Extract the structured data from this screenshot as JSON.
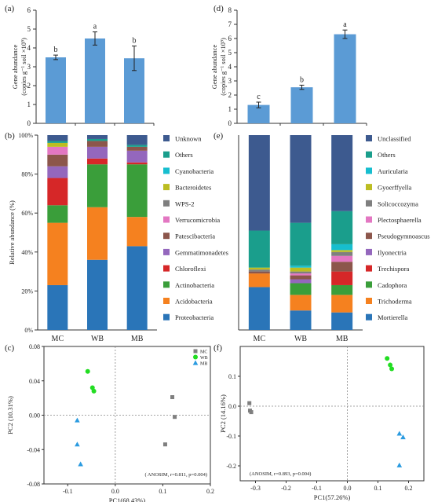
{
  "chart_data": [
    {
      "panel": "(a)",
      "type": "bar",
      "categories": [
        "MC",
        "WB",
        "MB"
      ],
      "values": [
        3.5,
        4.5,
        3.45
      ],
      "errors": [
        0.12,
        0.35,
        0.65
      ],
      "letters": [
        "b",
        "a",
        "b"
      ],
      "ylabel_lines": [
        "Gene abundance",
        "(copies g⁻¹ soil ×10⁹)"
      ],
      "ylim": [
        0,
        6
      ],
      "yticks": [
        "0",
        "1",
        "2",
        "3",
        "4",
        "5",
        "6"
      ],
      "color": "#5b9bd5"
    },
    {
      "panel": "(d)",
      "type": "bar",
      "categories": [
        "MC",
        "WB",
        "MB"
      ],
      "values": [
        1.3,
        2.55,
        6.3
      ],
      "errors": [
        0.2,
        0.15,
        0.3
      ],
      "letters": [
        "c",
        "b",
        "a"
      ],
      "ylabel_lines": [
        "Gene abundance",
        "(copies g⁻¹ soil ×10⁹)"
      ],
      "ylim": [
        0,
        8
      ],
      "yticks": [
        "0",
        "1",
        "2",
        "3",
        "4",
        "5",
        "6",
        "7",
        "8"
      ],
      "color": "#5b9bd5"
    },
    {
      "panel": "(b)",
      "type": "bar",
      "stacked": true,
      "categories": [
        "MC",
        "WB",
        "MB"
      ],
      "ylabel": "Relative abundance (%)",
      "yticks": [
        "0%",
        "20%",
        "40%",
        "60%",
        "80%",
        "100%"
      ],
      "series": [
        {
          "name": "Proteobacteria",
          "color": "#2a75b8",
          "values": [
            23,
            36,
            43
          ]
        },
        {
          "name": "Acidobacteria",
          "color": "#f5811f",
          "values": [
            32,
            27,
            15
          ]
        },
        {
          "name": "Actinobacteria",
          "color": "#3a9e3a",
          "values": [
            9,
            22,
            27
          ]
        },
        {
          "name": "Chloroflexi",
          "color": "#d62728",
          "values": [
            14,
            3,
            1
          ]
        },
        {
          "name": "Gemmatimonadetes",
          "color": "#9467bd",
          "values": [
            6,
            6,
            6
          ]
        },
        {
          "name": "Patescibacteria",
          "color": "#8c564b",
          "values": [
            6,
            3,
            2
          ]
        },
        {
          "name": "Verrucomicrobia",
          "color": "#e377c2",
          "values": [
            4,
            0,
            0
          ]
        },
        {
          "name": "WPS-2",
          "color": "#7f7f7f",
          "values": [
            0,
            0,
            0
          ]
        },
        {
          "name": "Bacteroidetes",
          "color": "#bcbd22",
          "values": [
            2,
            0,
            0
          ]
        },
        {
          "name": "Cyanobacteria",
          "color": "#17becf",
          "values": [
            0,
            0,
            0
          ]
        },
        {
          "name": "Others",
          "color": "#1a9e8c",
          "values": [
            1,
            1,
            1
          ]
        },
        {
          "name": "Unknown",
          "color": "#3d5a8f",
          "values": [
            3,
            2,
            5
          ]
        }
      ]
    },
    {
      "panel": "(e)",
      "type": "bar",
      "stacked": true,
      "categories": [
        "MC",
        "WB",
        "MB"
      ],
      "series": [
        {
          "name": "Mortierella",
          "color": "#2a75b8",
          "values": [
            22,
            10,
            9
          ]
        },
        {
          "name": "Trichoderma",
          "color": "#f5811f",
          "values": [
            7,
            8,
            9
          ]
        },
        {
          "name": "Cadophora",
          "color": "#3a9e3a",
          "values": [
            0,
            6,
            5
          ]
        },
        {
          "name": "Trechispora",
          "color": "#d62728",
          "values": [
            0,
            0,
            7
          ]
        },
        {
          "name": "Ilyonectria",
          "color": "#9467bd",
          "values": [
            0,
            2,
            0
          ]
        },
        {
          "name": "Pseudogymnoascus",
          "color": "#8c564b",
          "values": [
            1,
            2,
            5
          ]
        },
        {
          "name": "Plectosphaerella",
          "color": "#e377c2",
          "values": [
            0,
            1,
            3
          ]
        },
        {
          "name": "Solicoccozyma",
          "color": "#7f7f7f",
          "values": [
            1,
            1,
            2
          ]
        },
        {
          "name": "Gyoerffyella",
          "color": "#bcbd22",
          "values": [
            1,
            2,
            1
          ]
        },
        {
          "name": "Auricularia",
          "color": "#17becf",
          "values": [
            0,
            1,
            3
          ]
        },
        {
          "name": "Others",
          "color": "#1a9e8c",
          "values": [
            19,
            22,
            17
          ]
        },
        {
          "name": "Unclassified",
          "color": "#3d5a8f",
          "values": [
            49,
            45,
            39
          ]
        }
      ]
    },
    {
      "panel": "(c)",
      "type": "scatter",
      "xlabel": "PC1(68.43%)",
      "ylabel": "PC2 (10.31%)",
      "xlim": [
        -0.15,
        0.2
      ],
      "ylim": [
        -0.08,
        0.08
      ],
      "xticks": [
        "-0.1",
        "0.0",
        "0.1",
        "0.2"
      ],
      "yticks": [
        "-0.08",
        "-0.04",
        "0.00",
        "0.04",
        "0.08"
      ],
      "annotation": "( ANOSIM, r=0.811, p=0.004)",
      "legend_position": "top-right",
      "series": [
        {
          "name": "MC",
          "marker": "square",
          "color": "#7f7f7f",
          "x": [
            0.12,
            0.125,
            0.105
          ],
          "y": [
            0.021,
            -0.002,
            -0.034
          ]
        },
        {
          "name": "WB",
          "marker": "circle",
          "color": "#22dd22",
          "x": [
            -0.058,
            -0.048,
            -0.045
          ],
          "y": [
            0.051,
            0.032,
            0.028
          ]
        },
        {
          "name": "MB",
          "marker": "triangle",
          "color": "#2b9be0",
          "x": [
            -0.08,
            -0.08,
            -0.073
          ],
          "y": [
            -0.006,
            -0.034,
            -0.057
          ]
        }
      ]
    },
    {
      "panel": "(f)",
      "type": "scatter",
      "xlabel": "PC1(57.26%)",
      "ylabel": "PC2 (14.16%)",
      "xlim": [
        -0.35,
        0.25
      ],
      "ylim": [
        -0.25,
        0.2
      ],
      "xticks": [
        "-0.3",
        "-0.2",
        "-0.1",
        "0.0",
        "0.1",
        "0.2"
      ],
      "yticks": [
        "-0.2",
        "-0.1",
        "0.0",
        "0.1"
      ],
      "annotation": "(ANOSIM, r=0.893, p=0.004)",
      "series": [
        {
          "name": "MC",
          "marker": "square",
          "color": "#7f7f7f",
          "x": [
            -0.32,
            -0.318,
            -0.314
          ],
          "y": [
            0.01,
            -0.015,
            -0.02
          ]
        },
        {
          "name": "WB",
          "marker": "circle",
          "color": "#22dd22",
          "x": [
            0.13,
            0.145,
            0.14
          ],
          "y": [
            0.16,
            0.125,
            0.138
          ]
        },
        {
          "name": "MB",
          "marker": "triangle",
          "color": "#2b9be0",
          "x": [
            0.17,
            0.182,
            0.17
          ],
          "y": [
            -0.092,
            -0.104,
            -0.198
          ]
        }
      ]
    }
  ]
}
